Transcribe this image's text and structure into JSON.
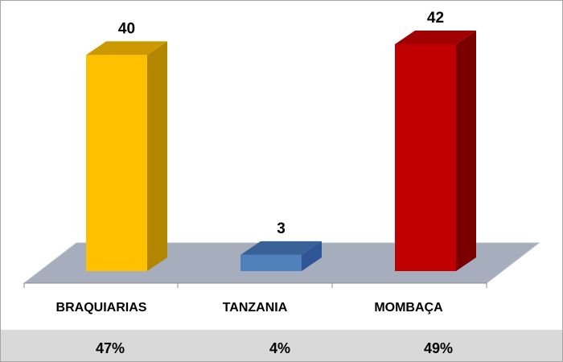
{
  "chart_data": {
    "type": "bar",
    "style": "3d-column",
    "categories": [
      "BRAQUIARIAS",
      "TANZANIA",
      "MOMBAÇA"
    ],
    "values": [
      40,
      3,
      42
    ],
    "percentages": [
      "47%",
      "4%",
      "49%"
    ],
    "value_labels": [
      "40",
      "3",
      "42"
    ],
    "colors": {
      "BRAQUIARIAS": {
        "front": "#ffc000",
        "side": "#b38600",
        "top": "#cc9a00"
      },
      "TANZANIA": {
        "front": "#4f81bd",
        "side": "#2f5596",
        "top": "#3a6299"
      },
      "MOMBAÇA": {
        "front": "#c00000",
        "side": "#7a0000",
        "top": "#a00000"
      }
    },
    "floor_color": "#a6adbd",
    "ylim": [
      0,
      42
    ],
    "grid": false,
    "legend": "none",
    "title": "",
    "xlabel": "",
    "ylabel": ""
  }
}
